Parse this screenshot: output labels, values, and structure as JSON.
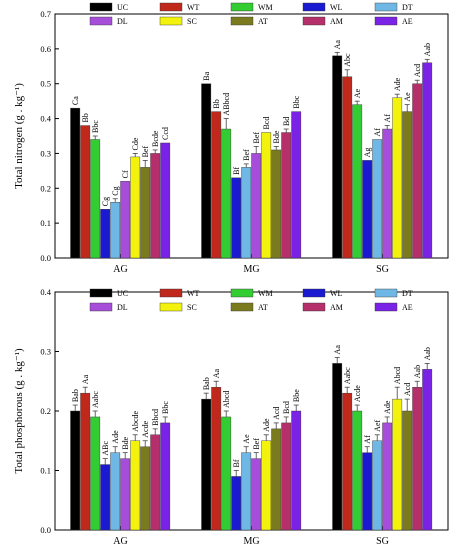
{
  "chart_data": [
    {
      "type": "bar",
      "ylabel": "Total nitrogen (g . kg⁻¹)",
      "ylim": [
        0,
        0.7
      ],
      "yticks": [
        "0.0",
        "0.1",
        "0.2",
        "0.3",
        "0.4",
        "0.5",
        "0.6",
        "0.7"
      ],
      "categories": [
        "AG",
        "MG",
        "SG"
      ],
      "legend_position": "top",
      "grid": false,
      "series": [
        {
          "name": "UC",
          "color": "#000000",
          "values": [
            0.43,
            0.5,
            0.58
          ],
          "errors": [
            0.0,
            0.0,
            0.01
          ],
          "labels": [
            "Ca",
            "Ba",
            "Aa"
          ]
        },
        {
          "name": "WT",
          "color": "#c0281c",
          "values": [
            0.38,
            0.42,
            0.52
          ],
          "errors": [
            0.0,
            0.0,
            0.02
          ],
          "labels": [
            "Bb",
            "Bb",
            "Abc"
          ]
        },
        {
          "name": "WM",
          "color": "#33cc33",
          "values": [
            0.34,
            0.37,
            0.44
          ],
          "errors": [
            0.01,
            0.03,
            0.01
          ],
          "labels": [
            "Bbc",
            "ABbcd",
            "Ae"
          ]
        },
        {
          "name": "WL",
          "color": "#1a1ad0",
          "values": [
            0.14,
            0.23,
            0.28
          ],
          "errors": [
            0.0,
            0.0,
            0.0
          ],
          "labels": [
            "Cg",
            "Bf",
            "Ag"
          ]
        },
        {
          "name": "DT",
          "color": "#6fb8e6",
          "values": [
            0.16,
            0.26,
            0.34
          ],
          "errors": [
            0.01,
            0.01,
            0.0
          ],
          "labels": [
            "Cg",
            "Bef",
            "Af"
          ]
        },
        {
          "name": "DL",
          "color": "#a64dd9",
          "values": [
            0.22,
            0.3,
            0.37
          ],
          "errors": [
            0.0,
            0.02,
            0.01
          ],
          "labels": [
            "Cf",
            "Bef",
            "Af"
          ]
        },
        {
          "name": "SC",
          "color": "#f2f20c",
          "values": [
            0.29,
            0.36,
            0.46
          ],
          "errors": [
            0.01,
            0.0,
            0.01
          ],
          "labels": [
            "Cde",
            "Bcd",
            "Ade"
          ]
        },
        {
          "name": "AT",
          "color": "#7a7a1e",
          "values": [
            0.26,
            0.31,
            0.42
          ],
          "errors": [
            0.02,
            0.01,
            0.02
          ],
          "labels": [
            "Bef",
            "Bde",
            "Ae"
          ]
        },
        {
          "name": "AM",
          "color": "#b5306a",
          "values": [
            0.3,
            0.36,
            0.5
          ],
          "errors": [
            0.01,
            0.01,
            0.01
          ],
          "labels": [
            "Bcde",
            "Bd",
            "Acd"
          ]
        },
        {
          "name": "AE",
          "color": "#7a22e6",
          "values": [
            0.33,
            0.42,
            0.56
          ],
          "errors": [
            0.0,
            0.0,
            0.01
          ],
          "labels": [
            "Ccd",
            "Bbc",
            "Aab"
          ]
        }
      ]
    },
    {
      "type": "bar",
      "ylabel": "Total phosphorous (g . kg⁻¹)",
      "ylim": [
        0,
        0.4
      ],
      "yticks": [
        "0.0",
        "0.1",
        "0.2",
        "0.3",
        "0.4"
      ],
      "categories": [
        "AG",
        "MG",
        "SG"
      ],
      "legend_position": "top",
      "grid": false,
      "series": [
        {
          "name": "UC",
          "color": "#000000",
          "values": [
            0.2,
            0.22,
            0.28
          ],
          "errors": [
            0.01,
            0.01,
            0.01
          ],
          "labels": [
            "Bab",
            "Bab",
            "Aa"
          ]
        },
        {
          "name": "WT",
          "color": "#c0281c",
          "values": [
            0.23,
            0.24,
            0.23
          ],
          "errors": [
            0.01,
            0.01,
            0.01
          ],
          "labels": [
            "Aa",
            "Aa",
            "Aabc"
          ]
        },
        {
          "name": "WM",
          "color": "#33cc33",
          "values": [
            0.19,
            0.19,
            0.2
          ],
          "errors": [
            0.01,
            0.01,
            0.01
          ],
          "labels": [
            "Aabc",
            "Abcd",
            "Acde"
          ]
        },
        {
          "name": "WL",
          "color": "#1a1ad0",
          "values": [
            0.11,
            0.09,
            0.13
          ],
          "errors": [
            0.01,
            0.01,
            0.01
          ],
          "labels": [
            "ABc",
            "Bf",
            "Af"
          ]
        },
        {
          "name": "DT",
          "color": "#6fb8e6",
          "values": [
            0.13,
            0.13,
            0.15
          ],
          "errors": [
            0.01,
            0.01,
            0.01
          ],
          "labels": [
            "Ade",
            "Ae",
            "Aef"
          ]
        },
        {
          "name": "DL",
          "color": "#a64dd9",
          "values": [
            0.12,
            0.12,
            0.18
          ],
          "errors": [
            0.01,
            0.01,
            0.01
          ],
          "labels": [
            "Bde",
            "Bef",
            "Ade"
          ]
        },
        {
          "name": "SC",
          "color": "#f2f20c",
          "values": [
            0.15,
            0.15,
            0.22
          ],
          "errors": [
            0.01,
            0.01,
            0.02
          ],
          "labels": [
            "Abcde",
            "Ade",
            "Abcd"
          ]
        },
        {
          "name": "AT",
          "color": "#7a7a1e",
          "values": [
            0.14,
            0.17,
            0.2
          ],
          "errors": [
            0.01,
            0.01,
            0.02
          ],
          "labels": [
            "Acde",
            "Acd",
            "Acd"
          ]
        },
        {
          "name": "AM",
          "color": "#b5306a",
          "values": [
            0.16,
            0.18,
            0.24
          ],
          "errors": [
            0.01,
            0.01,
            0.01
          ],
          "labels": [
            "Bbcd",
            "Bcd",
            "Aab"
          ]
        },
        {
          "name": "AE",
          "color": "#7a22e6",
          "values": [
            0.18,
            0.2,
            0.27
          ],
          "errors": [
            0.01,
            0.01,
            0.01
          ],
          "labels": [
            "Bbc",
            "Bbe",
            "Aab"
          ]
        }
      ]
    }
  ]
}
